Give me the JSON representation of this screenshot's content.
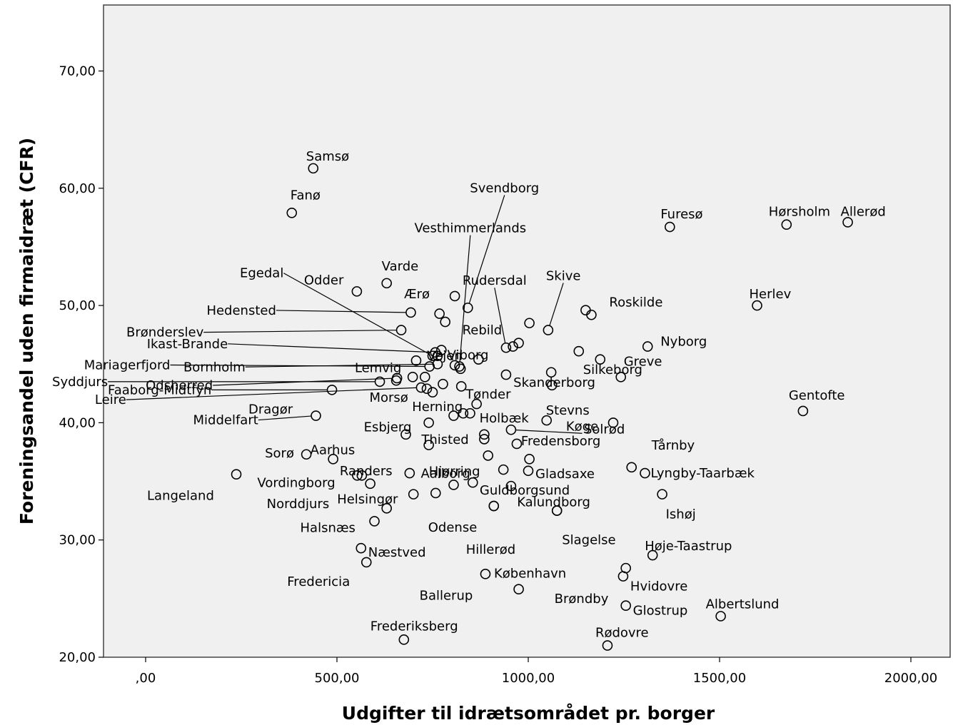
{
  "chart_data": {
    "type": "scatter",
    "title": "",
    "xlabel": "Udgifter til idrætsområdet pr. borger",
    "ylabel": "Foreningsandel uden firmaidræt (CFR)",
    "xlim": [
      -110,
      2120
    ],
    "ylim": [
      20,
      75.5
    ],
    "x_ticks": [
      0,
      500,
      1000,
      1500,
      2000
    ],
    "x_tick_labels": [
      ",00",
      "500,00",
      "1000,00",
      "1500,00",
      "2000,00"
    ],
    "y_ticks": [
      20,
      30,
      40,
      50,
      60,
      70
    ],
    "y_tick_labels": [
      "20,00",
      "30,00",
      "40,00",
      "50,00",
      "60,00",
      "70,00"
    ],
    "grid": false,
    "legend": "none",
    "marker": "open-circle",
    "points": [
      {
        "label": "Samsø",
        "x": 438,
        "y": 61.7
      },
      {
        "label": "Fanø",
        "x": 382,
        "y": 57.9
      },
      {
        "label": "Furesø",
        "x": 1370,
        "y": 56.7
      },
      {
        "label": "Hørsholm",
        "x": 1675,
        "y": 56.9
      },
      {
        "label": "Allerød",
        "x": 1835,
        "y": 57.1
      },
      {
        "label": "Vesthimmerlands",
        "x": 820,
        "y": 44.8
      },
      {
        "label": "Svendborg",
        "x": 842,
        "y": 49.8
      },
      {
        "label": "Skive",
        "x": 1052,
        "y": 47.9
      },
      {
        "label": "Rudersdal",
        "x": 942,
        "y": 46.4
      },
      {
        "label": "Odder",
        "x": 552,
        "y": 51.2
      },
      {
        "label": "Varde",
        "x": 630,
        "y": 51.9
      },
      {
        "label": "Roskilde",
        "x": 1150,
        "y": 49.6
      },
      {
        "label": "Herlev",
        "x": 1598,
        "y": 50.0
      },
      {
        "label": "Ærø",
        "x": 808,
        "y": 50.8
      },
      {
        "label": "Hedensted",
        "x": 693,
        "y": 49.4
      },
      {
        "label": "Egedal",
        "x": 750,
        "y": 45.7
      },
      {
        "label": "Rebild",
        "x": 1003,
        "y": 48.5
      },
      {
        "label": "Brønderslev",
        "x": 668,
        "y": 47.9
      },
      {
        "label": "Ikast-Brande",
        "x": 757,
        "y": 46.0
      },
      {
        "label": "Vejen",
        "x": 773,
        "y": 46.2
      },
      {
        "label": "Viborg",
        "x": 975,
        "y": 46.8
      },
      {
        "label": "Silkeborg",
        "x": 1132,
        "y": 46.1
      },
      {
        "label": "Nyborg",
        "x": 1312,
        "y": 46.5
      },
      {
        "label": "Bornholm",
        "x": 763,
        "y": 45.0
      },
      {
        "label": "Lemvig",
        "x": 707,
        "y": 45.3
      },
      {
        "label": "Mariagerfjord",
        "x": 742,
        "y": 44.8
      },
      {
        "label": "Odsherred",
        "x": 657,
        "y": 43.8
      },
      {
        "label": "Syddjurs",
        "x": 612,
        "y": 43.5
      },
      {
        "label": "Leire",
        "x": 720,
        "y": 43.0
      },
      {
        "label": "Skanderborg",
        "x": 1060,
        "y": 44.3
      },
      {
        "label": "Greve",
        "x": 1242,
        "y": 43.9
      },
      {
        "label": "Faaborg-Midtfyn",
        "x": 487,
        "y": 42.8
      },
      {
        "label": "Dragør",
        "x": 750,
        "y": 42.6
      },
      {
        "label": "Morsø",
        "x": 777,
        "y": 43.3
      },
      {
        "label": "Tønder",
        "x": 825,
        "y": 43.1
      },
      {
        "label": "Herning",
        "x": 1062,
        "y": 43.2
      },
      {
        "label": "Gentofte",
        "x": 1718,
        "y": 41.0
      },
      {
        "label": "Middelfart",
        "x": 445,
        "y": 40.6
      },
      {
        "label": "Esbjerg",
        "x": 740,
        "y": 40.0
      },
      {
        "label": "Holbæk",
        "x": 865,
        "y": 41.6
      },
      {
        "label": "Stevns",
        "x": 1048,
        "y": 40.2
      },
      {
        "label": "Køge",
        "x": 955,
        "y": 39.4
      },
      {
        "label": "Solrød",
        "x": 1222,
        "y": 40.0
      },
      {
        "label": "Thisted",
        "x": 885,
        "y": 39.0
      },
      {
        "label": "Sorø",
        "x": 420,
        "y": 37.3
      },
      {
        "label": "Aarhus",
        "x": 490,
        "y": 36.9
      },
      {
        "label": "Fredensborg",
        "x": 970,
        "y": 38.2
      },
      {
        "label": "Tårnby",
        "x": 1270,
        "y": 36.2
      },
      {
        "label": "Hjørring",
        "x": 895,
        "y": 37.2
      },
      {
        "label": "Randers",
        "x": 690,
        "y": 35.7
      },
      {
        "label": "Gladsaxe",
        "x": 1000,
        "y": 35.9
      },
      {
        "label": "Lyngby-Taarbæk",
        "x": 1305,
        "y": 35.7
      },
      {
        "label": "Langeland",
        "x": 237,
        "y": 35.6
      },
      {
        "label": "Vordingborg",
        "x": 553,
        "y": 35.5
      },
      {
        "label": "Aalborg",
        "x": 805,
        "y": 34.7
      },
      {
        "label": "Guldborgsund",
        "x": 955,
        "y": 34.6
      },
      {
        "label": "Norddjurs",
        "x": 587,
        "y": 34.8
      },
      {
        "label": "Helsingør",
        "x": 700,
        "y": 33.9
      },
      {
        "label": "Ishøj",
        "x": 1350,
        "y": 33.9
      },
      {
        "label": "Kalundborg",
        "x": 1075,
        "y": 32.5
      },
      {
        "label": "Odense",
        "x": 910,
        "y": 32.9
      },
      {
        "label": "Halsnæs",
        "x": 598,
        "y": 31.6
      },
      {
        "label": "Slagelse",
        "x": 1075,
        "y": 32.5
      },
      {
        "label": "Hillerød",
        "x": 910,
        "y": 32.9
      },
      {
        "label": "Næstved",
        "x": 563,
        "y": 29.3
      },
      {
        "label": "Høje-Taastrup",
        "x": 1325,
        "y": 28.7
      },
      {
        "label": "Fredericia",
        "x": 577,
        "y": 28.1
      },
      {
        "label": "København",
        "x": 888,
        "y": 27.1
      },
      {
        "label": "Hvidovre",
        "x": 1248,
        "y": 26.9
      },
      {
        "label": "Ballerup",
        "x": 975,
        "y": 25.8
      },
      {
        "label": "Brøndby",
        "x": 1255,
        "y": 27.6
      },
      {
        "label": "Glostrup",
        "x": 1255,
        "y": 24.4
      },
      {
        "label": "Albertslund",
        "x": 1503,
        "y": 23.5
      },
      {
        "label": "Frederiksberg",
        "x": 675,
        "y": 21.5
      },
      {
        "label": "Rødovre",
        "x": 1207,
        "y": 21.0
      },
      {
        "label": "",
        "x": 565,
        "y": 35.5
      },
      {
        "label": "",
        "x": 630,
        "y": 32.7
      },
      {
        "label": "",
        "x": 680,
        "y": 39.0
      },
      {
        "label": "",
        "x": 740,
        "y": 38.1
      },
      {
        "label": "",
        "x": 768,
        "y": 49.3
      },
      {
        "label": "",
        "x": 783,
        "y": 48.6
      },
      {
        "label": "",
        "x": 823,
        "y": 44.6
      },
      {
        "label": "",
        "x": 805,
        "y": 40.6
      },
      {
        "label": "",
        "x": 830,
        "y": 40.8
      },
      {
        "label": "",
        "x": 848,
        "y": 40.8
      },
      {
        "label": "",
        "x": 855,
        "y": 34.9
      },
      {
        "label": "",
        "x": 870,
        "y": 45.4
      },
      {
        "label": "",
        "x": 885,
        "y": 38.6
      },
      {
        "label": "",
        "x": 942,
        "y": 44.1
      },
      {
        "label": "",
        "x": 935,
        "y": 36.0
      },
      {
        "label": "",
        "x": 1003,
        "y": 36.9
      },
      {
        "label": "",
        "x": 1165,
        "y": 49.2
      },
      {
        "label": "",
        "x": 1188,
        "y": 45.4
      },
      {
        "label": "",
        "x": 758,
        "y": 34.0
      },
      {
        "label": "",
        "x": 763,
        "y": 45.7
      },
      {
        "label": "",
        "x": 960,
        "y": 46.5
      },
      {
        "label": "",
        "x": 698,
        "y": 43.9
      },
      {
        "label": "",
        "x": 730,
        "y": 43.9
      },
      {
        "label": "",
        "x": 735,
        "y": 42.9
      },
      {
        "label": "",
        "x": 655,
        "y": 43.6
      },
      {
        "label": "",
        "x": 808,
        "y": 44.9
      }
    ]
  }
}
